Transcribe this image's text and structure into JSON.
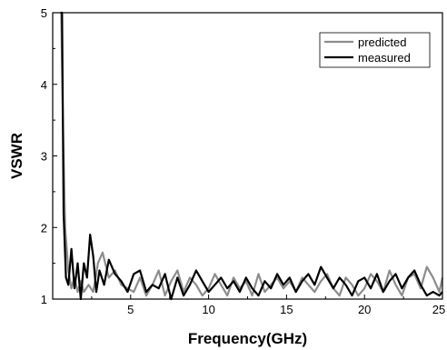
{
  "chart_data": {
    "type": "line",
    "title": "",
    "xlabel": "Frequency(GHz)",
    "ylabel": "VSWR",
    "xlim": [
      0,
      25
    ],
    "ylim": [
      1,
      5
    ],
    "x_ticks": [
      5,
      10,
      15,
      20,
      25
    ],
    "x_tick_labels": [
      "5",
      "10",
      "15",
      "20",
      "25"
    ],
    "y_ticks": [
      1,
      2,
      3,
      4,
      5
    ],
    "y_tick_labels": [
      "1",
      "2",
      "3",
      "4",
      "5"
    ],
    "grid": false,
    "legend_position": "top-right",
    "series": [
      {
        "name": "predicted",
        "color": "#8c8c8c",
        "x": [
          0.55,
          0.65,
          0.8,
          1.0,
          1.2,
          1.4,
          1.6,
          1.8,
          2.0,
          2.3,
          2.6,
          2.9,
          3.2,
          3.6,
          4.0,
          4.4,
          4.8,
          5.2,
          5.6,
          6.0,
          6.4,
          6.8,
          7.2,
          7.6,
          8.0,
          8.4,
          8.8,
          9.2,
          9.6,
          10.0,
          10.4,
          10.8,
          11.2,
          11.6,
          12.0,
          12.4,
          12.8,
          13.2,
          13.6,
          14.0,
          14.4,
          14.8,
          15.2,
          15.6,
          16.0,
          16.4,
          16.8,
          17.2,
          17.6,
          18.0,
          18.4,
          18.8,
          19.2,
          19.6,
          20.0,
          20.4,
          20.8,
          21.2,
          21.6,
          22.0,
          22.4,
          22.8,
          23.2,
          23.6,
          24.0,
          24.4,
          24.8,
          25.0
        ],
        "values": [
          5.0,
          3.5,
          2.0,
          1.4,
          1.15,
          1.3,
          1.1,
          1.25,
          1.1,
          1.2,
          1.1,
          1.5,
          1.65,
          1.3,
          1.4,
          1.2,
          1.15,
          1.1,
          1.3,
          1.05,
          1.2,
          1.4,
          1.05,
          1.25,
          1.4,
          1.1,
          1.3,
          1.2,
          1.05,
          1.15,
          1.35,
          1.2,
          1.05,
          1.3,
          1.15,
          1.25,
          1.05,
          1.35,
          1.1,
          1.2,
          1.3,
          1.15,
          1.25,
          1.1,
          1.3,
          1.2,
          1.1,
          1.25,
          1.35,
          1.15,
          1.05,
          1.3,
          1.2,
          1.05,
          1.15,
          1.35,
          1.25,
          1.1,
          1.4,
          1.2,
          1.05,
          1.3,
          1.35,
          1.15,
          1.45,
          1.3,
          1.1,
          1.3
        ]
      },
      {
        "name": "measured",
        "color": "#000000",
        "x": [
          0.5,
          0.6,
          0.7,
          0.85,
          1.0,
          1.2,
          1.4,
          1.6,
          1.8,
          2.0,
          2.2,
          2.4,
          2.6,
          2.8,
          3.0,
          3.3,
          3.6,
          4.0,
          4.4,
          4.8,
          5.2,
          5.6,
          6.0,
          6.4,
          6.8,
          7.2,
          7.6,
          8.0,
          8.4,
          8.8,
          9.2,
          9.6,
          10.0,
          10.4,
          10.8,
          11.2,
          11.6,
          12.0,
          12.4,
          12.8,
          13.2,
          13.6,
          14.0,
          14.4,
          14.8,
          15.2,
          15.6,
          16.0,
          16.4,
          16.8,
          17.2,
          17.6,
          18.0,
          18.4,
          18.8,
          19.2,
          19.6,
          20.0,
          20.4,
          20.8,
          21.2,
          21.6,
          22.0,
          22.4,
          22.8,
          23.2,
          23.6,
          24.0,
          24.4,
          24.8,
          25.0
        ],
        "values": [
          5.0,
          5.0,
          2.2,
          1.3,
          1.2,
          1.7,
          1.15,
          1.5,
          1.0,
          1.5,
          1.3,
          1.9,
          1.6,
          1.1,
          1.4,
          1.2,
          1.55,
          1.35,
          1.25,
          1.1,
          1.35,
          1.4,
          1.1,
          1.2,
          1.15,
          1.35,
          1.0,
          1.3,
          1.05,
          1.2,
          1.4,
          1.25,
          1.1,
          1.2,
          1.3,
          1.15,
          1.25,
          1.1,
          1.3,
          1.15,
          1.05,
          1.25,
          1.15,
          1.35,
          1.2,
          1.3,
          1.1,
          1.25,
          1.35,
          1.2,
          1.45,
          1.3,
          1.15,
          1.3,
          1.2,
          1.05,
          1.25,
          1.3,
          1.15,
          1.35,
          1.1,
          1.25,
          1.35,
          1.15,
          1.3,
          1.4,
          1.2,
          1.05,
          1.1,
          1.05,
          1.1
        ]
      }
    ]
  }
}
